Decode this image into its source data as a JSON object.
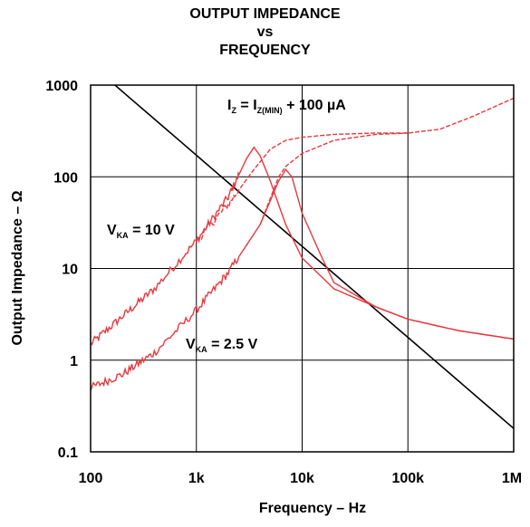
{
  "chart_data": {
    "type": "line",
    "title_lines": [
      "OUTPUT IMPEDANCE",
      "vs",
      "FREQUENCY"
    ],
    "xlabel": "Frequency – Hz",
    "ylabel": "Output Impedance – Ω",
    "x_scale": "log",
    "y_scale": "log",
    "xlim": [
      100,
      1000000
    ],
    "ylim": [
      0.1,
      1000
    ],
    "grid": true,
    "x_ticks": [
      {
        "value": 100,
        "label": "100"
      },
      {
        "value": 1000,
        "label": "1k"
      },
      {
        "value": 10000,
        "label": "10k"
      },
      {
        "value": 100000,
        "label": "100k"
      },
      {
        "value": 1000000,
        "label": "1M"
      }
    ],
    "y_ticks": [
      {
        "value": 0.1,
        "label": "0.1"
      },
      {
        "value": 1,
        "label": "1"
      },
      {
        "value": 10,
        "label": "10"
      },
      {
        "value": 100,
        "label": "100"
      },
      {
        "value": 1000,
        "label": "1000"
      }
    ],
    "annotations": {
      "condition": {
        "main": "I",
        "sub1": "Z",
        "mid": " = I",
        "sub2": "Z(MIN)",
        "tail": " + 100 µA"
      },
      "vka_10": {
        "main": "V",
        "sub": "KA",
        "tail": " = 10 V"
      },
      "vka_25": {
        "main": "V",
        "sub": "KA",
        "tail": " = 2.5 V"
      }
    },
    "series": [
      {
        "color": "#000000",
        "style": "solid",
        "x": [
          170,
          1000000
        ],
        "y": [
          1000,
          0.18
        ]
      },
      {
        "color": "#e8383d",
        "style": "solid",
        "x": [
          100,
          200,
          400,
          1000,
          2000,
          3000,
          3500,
          4000,
          5000,
          7000,
          10000,
          20000,
          50000,
          100000,
          300000,
          1000000
        ],
        "y": [
          1.5,
          3,
          6,
          20,
          60,
          160,
          210,
          170,
          90,
          30,
          13,
          6,
          3.8,
          2.8,
          2.1,
          1.7
        ]
      },
      {
        "color": "#e8383d",
        "style": "dashed",
        "x": [
          1000,
          2000,
          3500,
          5000,
          7000,
          10000,
          20000,
          50000,
          100000,
          200000,
          400000,
          1000000
        ],
        "y": [
          20,
          50,
          120,
          200,
          250,
          270,
          290,
          300,
          300,
          330,
          450,
          720
        ]
      },
      {
        "color": "#e8383d",
        "style": "solid",
        "x": [
          100,
          200,
          400,
          1000,
          2000,
          4000,
          6000,
          7000,
          8000,
          10000,
          15000,
          20000,
          50000,
          100000,
          300000,
          1000000
        ],
        "y": [
          0.5,
          0.7,
          1.2,
          3.5,
          9,
          30,
          90,
          120,
          100,
          40,
          14,
          7,
          3.8,
          2.8,
          2.1,
          1.7
        ]
      },
      {
        "color": "#e8383d",
        "style": "dashed",
        "x": [
          4000,
          6000,
          7000,
          10000,
          20000,
          50000,
          100000
        ],
        "y": [
          30,
          100,
          130,
          180,
          250,
          290,
          300
        ]
      }
    ]
  }
}
